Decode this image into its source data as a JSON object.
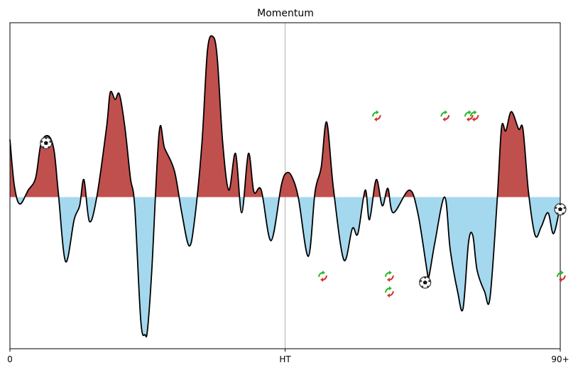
{
  "chart_data": {
    "type": "momentum",
    "title": "Momentum",
    "x": [
      0,
      0.7,
      1.6,
      3.0,
      4.2,
      5.1,
      6.3,
      7.2,
      7.9,
      9.1,
      10.5,
      11.4,
      12.1,
      13.0,
      14.2,
      15.8,
      16.4,
      17.2,
      17.9,
      18.8,
      19.7,
      20.4,
      21.4,
      22.1,
      22.5,
      23.2,
      24.4,
      25.3,
      26.9,
      28.1,
      29.3,
      30.2,
      31.4,
      32.3,
      33.2,
      33.9,
      34.8,
      35.8,
      36.9,
      37.9,
      39.0,
      39.9,
      41.1,
      42.7,
      44.4,
      45.3,
      46.2,
      47.2,
      48.8,
      49.9,
      50.9,
      51.8,
      52.9,
      54.6,
      56.0,
      56.9,
      58.1,
      58.8,
      59.9,
      60.9,
      61.8,
      62.7,
      65.3,
      66.7,
      68.2,
      68.5,
      69.5,
      71.1,
      72.0,
      73.2,
      74.1,
      75.0,
      75.7,
      76.4,
      77.6,
      78.5,
      79.7,
      80.4,
      81.1,
      82.0,
      83.2,
      83.9,
      84.8,
      85.9,
      86.9,
      88.0,
      88.9,
      90.0
    ],
    "values": [
      0.33,
      0.07,
      -0.04,
      0.04,
      0.11,
      0.31,
      0.35,
      0.27,
      0.03,
      -0.37,
      -0.13,
      -0.05,
      0.1,
      -0.14,
      0,
      0.4,
      0.6,
      0.56,
      0.59,
      0.4,
      0.11,
      -0.05,
      -0.71,
      -0.79,
      -0.76,
      -0.42,
      0.37,
      0.28,
      0.15,
      -0.09,
      -0.28,
      -0.13,
      0.31,
      0.84,
      0.92,
      0.8,
      0.31,
      0.04,
      0.25,
      -0.09,
      0.25,
      0.03,
      0.04,
      -0.25,
      0.07,
      0.14,
      0.11,
      -0.01,
      -0.34,
      0.03,
      0.17,
      0.43,
      0.05,
      -0.36,
      -0.18,
      -0.21,
      0.04,
      -0.13,
      0.1,
      -0.05,
      0.05,
      -0.09,
      0.04,
      -0.09,
      -0.42,
      -0.46,
      -0.26,
      0,
      -0.3,
      -0.54,
      -0.64,
      -0.26,
      -0.22,
      -0.42,
      -0.54,
      -0.58,
      -0.01,
      0.4,
      0.38,
      0.49,
      0.39,
      0.39,
      0.03,
      -0.22,
      -0.17,
      -0.09,
      -0.21,
      -0.05
    ],
    "xlim": [
      0,
      90
    ],
    "ylim": [
      -0.87,
      1
    ],
    "xticks": [
      0,
      {
        "value": 45,
        "label": "HT"
      },
      {
        "value": 90,
        "label": "90+"
      }
    ],
    "vlines": [
      45
    ],
    "line_color": "#000000",
    "positive_color": "#c0504d",
    "negative_color": "#a4d8ee",
    "goals": {
      "x": [
        5.9,
        67.9,
        90.0
      ],
      "y": [
        0.31,
        -0.49,
        -0.07
      ]
    },
    "substitutions": {
      "x": [
        59.9,
        71.1,
        75.0,
        75.9,
        51.1,
        62.0,
        62.0,
        90.1
      ],
      "y": [
        0.47,
        0.47,
        0.47,
        0.47,
        -0.45,
        -0.45,
        -0.54,
        -0.45
      ]
    }
  }
}
